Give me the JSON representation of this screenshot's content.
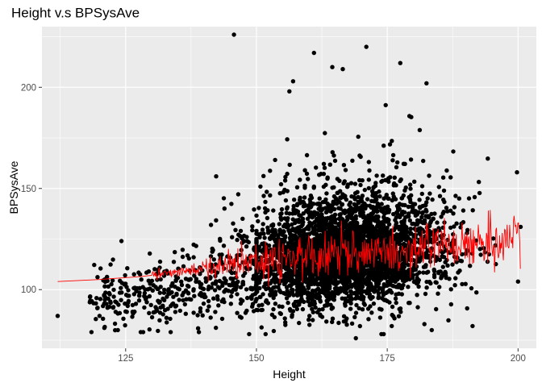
{
  "chart_data": {
    "type": "scatter",
    "title": "Height v.s BPSysAve",
    "xlabel": "Height",
    "ylabel": "BPSysAve",
    "xlim": [
      109,
      203.5
    ],
    "ylim": [
      71,
      230
    ],
    "x_ticks": [
      125,
      150,
      175,
      200
    ],
    "y_ticks": [
      100,
      150,
      200
    ],
    "grid": true,
    "legend": "none",
    "colors": {
      "panel_background": "#ebebeb",
      "grid": "#ffffff",
      "points": "#000000",
      "smooth_line": "#ff0000",
      "ticks": "#333333"
    },
    "outlier_points": [
      {
        "x": 112,
        "y": 87
      },
      {
        "x": 124.2,
        "y": 124
      },
      {
        "x": 145.7,
        "y": 226
      },
      {
        "x": 171,
        "y": 220
      },
      {
        "x": 161,
        "y": 217
      },
      {
        "x": 177.5,
        "y": 212
      },
      {
        "x": 164.5,
        "y": 210
      },
      {
        "x": 166.5,
        "y": 209
      },
      {
        "x": 182.5,
        "y": 202
      },
      {
        "x": 157,
        "y": 203
      },
      {
        "x": 156.3,
        "y": 198
      },
      {
        "x": 200,
        "y": 104
      },
      {
        "x": 199.8,
        "y": 158
      },
      {
        "x": 200.5,
        "y": 131
      },
      {
        "x": 191.3,
        "y": 82
      },
      {
        "x": 169,
        "y": 76
      },
      {
        "x": 183.5,
        "y": 80
      },
      {
        "x": 123.5,
        "y": 80
      },
      {
        "x": 139,
        "y": 79
      },
      {
        "x": 142.3,
        "y": 156
      },
      {
        "x": 128,
        "y": 105
      },
      {
        "x": 120,
        "y": 87
      }
    ],
    "smooth_line": {
      "x": [
        112,
        120,
        128,
        135,
        140,
        145,
        150,
        155,
        160,
        165,
        170,
        175,
        180,
        185,
        190,
        194,
        196,
        198,
        200.5
      ],
      "y": [
        104,
        105,
        106.5,
        108.5,
        110.5,
        112,
        114,
        115.5,
        116.5,
        117.5,
        118.5,
        119.5,
        120.5,
        121.5,
        122.5,
        123,
        121,
        125,
        130
      ]
    }
  }
}
